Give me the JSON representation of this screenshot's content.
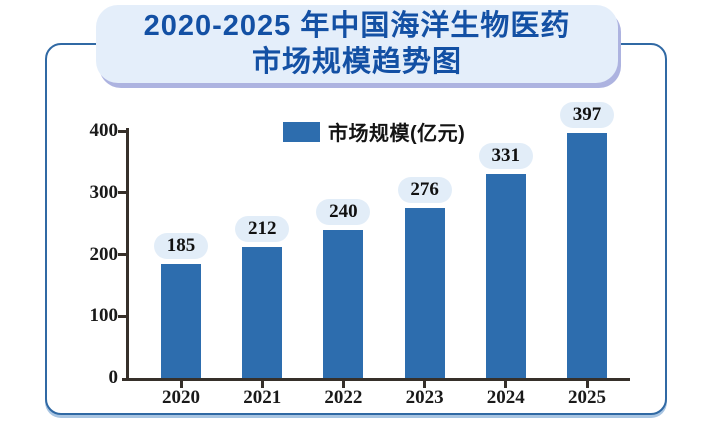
{
  "title": {
    "line1": "2020-2025 年中国海洋生物医药",
    "line2": "市场规模趋势图"
  },
  "legend": {
    "label": "市场规模(亿元)"
  },
  "colors": {
    "bar": "#2d6dae",
    "title_text": "#1350a4",
    "title_box_bg": "#e4eefa",
    "title_box_shadow": "#adb3e0",
    "card_border": "#3069a4",
    "axis": "#36302a",
    "value_pill_bg": "#e2edf8"
  },
  "chart_data": {
    "type": "bar",
    "title": "2020-2025年中国海洋生物医药市场规模趋势图",
    "categories": [
      "2020",
      "2021",
      "2022",
      "2023",
      "2024",
      "2025"
    ],
    "series": [
      {
        "name": "市场规模(亿元)",
        "values": [
          185,
          212,
          240,
          276,
          331,
          397
        ]
      }
    ],
    "data_labels": [
      "185",
      "212",
      "240",
      "276",
      "331",
      "397"
    ],
    "xlabel": "",
    "ylabel": "",
    "ylim": [
      0,
      400
    ],
    "yticks": [
      0,
      100,
      200,
      300,
      400
    ],
    "grid": false,
    "legend_position": "top-center"
  }
}
